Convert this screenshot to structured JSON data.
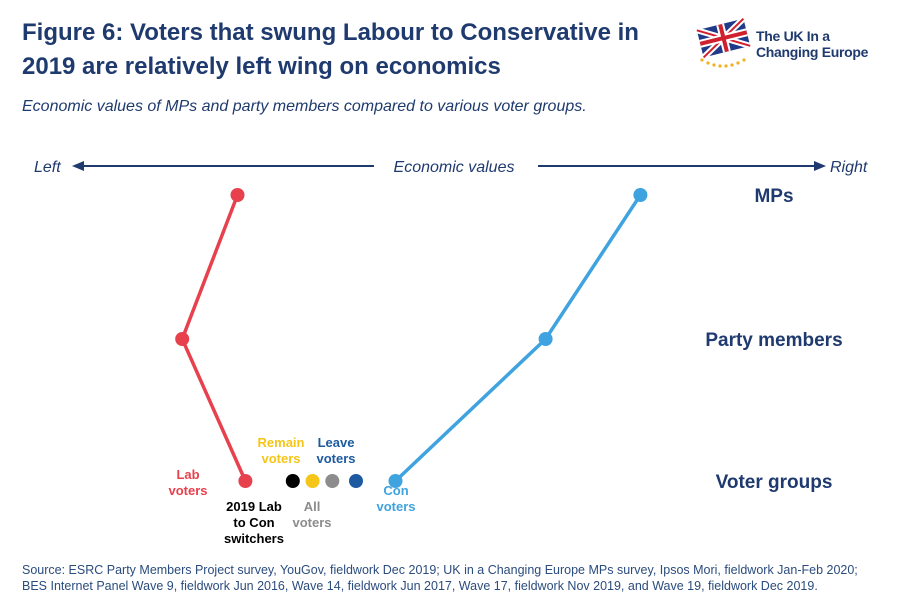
{
  "title": "Figure 6: Voters that swung Labour to Conservative in 2019 are relatively left wing on economics",
  "subtitle": "Economic values of MPs and party members compared to various voter groups.",
  "logo": {
    "line1": "The UK In a",
    "line2": "Changing Europe",
    "icon": "union-flag-icon"
  },
  "source": "Source: ESRC Party Members Project survey, YouGov, fieldwork Dec 2019; UK in a Changing Europe MPs survey, Ipsos Mori, fieldwork Jan-Feb 2020; BES Internet Panel Wave 9, fieldwork Jun 2016, Wave 14, fieldwork Jun 2017, Wave 17, fieldwork Nov 2019, and Wave 19, fieldwork Dec 2019.",
  "colors": {
    "labour": "#e8414e",
    "conservative": "#3fa3e0",
    "remain": "#f5c518",
    "leave": "#1d5aa0",
    "switchers": "#000000",
    "all": "#8c8c8c",
    "axis": "#1f3a6e"
  },
  "chart_data": {
    "type": "line",
    "xlabel": "Economic values",
    "x_left_label": "Left",
    "x_right_label": "Right",
    "xlim": [
      0,
      100
    ],
    "categories": [
      "MPs",
      "Party members",
      "Voter groups"
    ],
    "series": [
      {
        "name": "Labour",
        "values": [
          25,
          18,
          26
        ],
        "color": "#e8414e"
      },
      {
        "name": "Conservative",
        "values": [
          76,
          64,
          45
        ],
        "color": "#3fa3e0"
      }
    ],
    "voter_groups": [
      {
        "name": "Lab voters",
        "value": 26,
        "color": "#e8414e",
        "label_color": "#e8414e"
      },
      {
        "name": "2019 Lab to Con switchers",
        "value": 32,
        "color": "#000000",
        "label_color": "#000000"
      },
      {
        "name": "Remain voters",
        "value": 34.5,
        "color": "#f5c518",
        "label_color": "#f5c518"
      },
      {
        "name": "All voters",
        "value": 37,
        "color": "#8c8c8c",
        "label_color": "#8c8c8c"
      },
      {
        "name": "Leave voters",
        "value": 40,
        "color": "#1d5aa0",
        "label_color": "#1d5aa0"
      },
      {
        "name": "Con voters",
        "value": 45,
        "color": "#3fa3e0",
        "label_color": "#3fa3e0"
      }
    ],
    "point_labels": {
      "lab_voters": [
        "Lab",
        "voters"
      ],
      "switchers": [
        "2019 Lab",
        "to Con",
        "switchers"
      ],
      "remain": [
        "Remain",
        "voters"
      ],
      "all": [
        "All",
        "voters"
      ],
      "leave": [
        "Leave",
        "voters"
      ],
      "con_voters": [
        "Con",
        "voters"
      ]
    }
  }
}
